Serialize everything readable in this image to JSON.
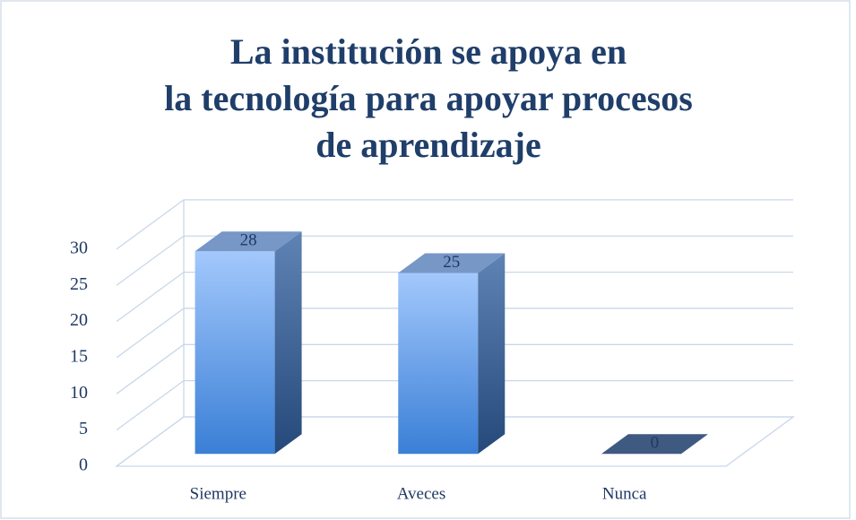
{
  "chart_data": {
    "type": "bar3d",
    "title": "La institución se apoya en la tecnología para apoyar procesos de aprendizaje",
    "categories": [
      "Siempre",
      "Aveces",
      "Nunca"
    ],
    "values": [
      28,
      25,
      0
    ],
    "color": "#4f8fe6",
    "ylim": [
      0,
      30
    ],
    "yticks": [
      0,
      5,
      10,
      15,
      20,
      25,
      30
    ],
    "grid": true
  }
}
